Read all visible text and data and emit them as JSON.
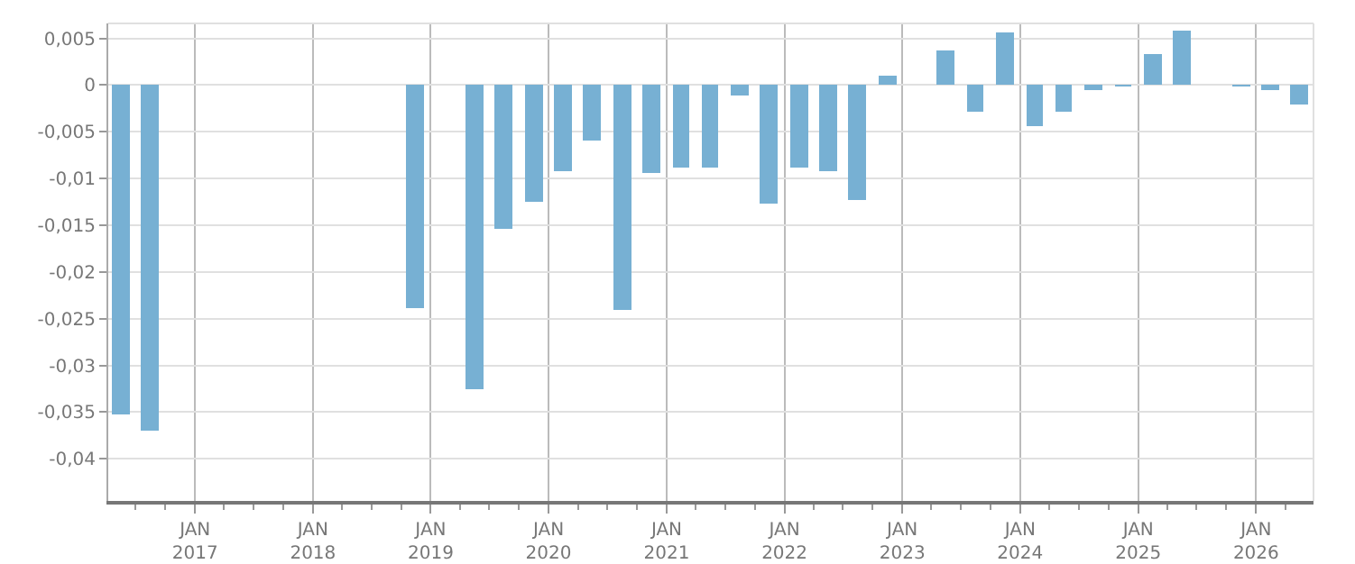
{
  "chart_data": {
    "type": "bar",
    "x": [
      "2016-05-15",
      "2016-08-15",
      "2018-11-15",
      "2019-05-15",
      "2019-08-15",
      "2019-11-15",
      "2020-02-15",
      "2020-05-15",
      "2020-08-15",
      "2020-11-15",
      "2021-02-15",
      "2021-05-15",
      "2021-08-15",
      "2021-11-15",
      "2022-02-15",
      "2022-05-15",
      "2022-08-15",
      "2022-11-15",
      "2023-02-15",
      "2023-05-15",
      "2023-08-15",
      "2023-11-15",
      "2024-02-15",
      "2024-05-15",
      "2024-08-15",
      "2024-11-15",
      "2025-02-15",
      "2025-05-15",
      "2025-08-15",
      "2025-11-15",
      "2026-02-15",
      "2026-05-15"
    ],
    "values": [
      -0.0353,
      -0.037,
      -0.0238,
      -0.0326,
      -0.0154,
      -0.0124,
      -0.0093,
      -0.0059,
      -0.024,
      -0.0095,
      -0.0089,
      -0.0089,
      -0.0011,
      -0.0127,
      -0.0089,
      -0.0093,
      -0.0122,
      0.0011,
      null,
      0.0038,
      -0.0028,
      0.0057,
      -0.0043,
      -0.0028,
      -0.0005,
      -0.0001,
      0.0034,
      0.0059,
      null,
      -0.0001,
      -0.0005,
      -0.002
    ],
    "color": "#77b0d3",
    "xlim": [
      "2016-04-07",
      "2026-06-28"
    ],
    "xticks": [
      {
        "value": "2016-07-01",
        "label": null
      },
      {
        "value": "2016-10-01",
        "label": null
      },
      {
        "value": "2017-01-01",
        "label": "JAN\n2017"
      },
      {
        "value": "2017-04-01",
        "label": null
      },
      {
        "value": "2017-07-01",
        "label": null
      },
      {
        "value": "2017-10-01",
        "label": null
      },
      {
        "value": "2018-01-01",
        "label": "JAN\n2018"
      },
      {
        "value": "2018-04-01",
        "label": null
      },
      {
        "value": "2018-07-01",
        "label": null
      },
      {
        "value": "2018-10-01",
        "label": null
      },
      {
        "value": "2019-01-01",
        "label": "JAN\n2019"
      },
      {
        "value": "2019-04-01",
        "label": null
      },
      {
        "value": "2019-07-01",
        "label": null
      },
      {
        "value": "2019-10-01",
        "label": null
      },
      {
        "value": "2020-01-01",
        "label": "JAN\n2020"
      },
      {
        "value": "2020-04-01",
        "label": null
      },
      {
        "value": "2020-07-01",
        "label": null
      },
      {
        "value": "2020-10-01",
        "label": null
      },
      {
        "value": "2021-01-01",
        "label": "JAN\n2021"
      },
      {
        "value": "2021-04-01",
        "label": null
      },
      {
        "value": "2021-07-01",
        "label": null
      },
      {
        "value": "2021-10-01",
        "label": null
      },
      {
        "value": "2022-01-01",
        "label": "JAN\n2022"
      },
      {
        "value": "2022-04-01",
        "label": null
      },
      {
        "value": "2022-07-01",
        "label": null
      },
      {
        "value": "2022-10-01",
        "label": null
      },
      {
        "value": "2023-01-01",
        "label": "JAN\n2023"
      },
      {
        "value": "2023-04-01",
        "label": null
      },
      {
        "value": "2023-07-01",
        "label": null
      },
      {
        "value": "2023-10-01",
        "label": null
      },
      {
        "value": "2024-01-01",
        "label": "JAN\n2024"
      },
      {
        "value": "2024-04-01",
        "label": null
      },
      {
        "value": "2024-07-01",
        "label": null
      },
      {
        "value": "2024-10-01",
        "label": null
      },
      {
        "value": "2025-01-01",
        "label": "JAN\n2025"
      },
      {
        "value": "2025-04-01",
        "label": null
      },
      {
        "value": "2025-07-01",
        "label": null
      },
      {
        "value": "2025-10-01",
        "label": null
      },
      {
        "value": "2026-01-01",
        "label": "JAN\n2026"
      },
      {
        "value": "2026-04-01",
        "label": null
      }
    ],
    "ylim": [
      -0.0445,
      0.0066
    ],
    "yticks": [
      {
        "value": 0.005,
        "label": "0,005"
      },
      0,
      {
        "value": -0.005,
        "label": "-0,005"
      },
      {
        "value": -0.01,
        "label": "-0,01"
      },
      {
        "value": -0.015,
        "label": "-0,015"
      },
      {
        "value": -0.02,
        "label": "-0,02"
      },
      {
        "value": -0.025,
        "label": "-0,025"
      },
      {
        "value": -0.03,
        "label": "-0,03"
      },
      {
        "value": -0.035,
        "label": "-0,035"
      },
      {
        "value": -0.04,
        "label": "-0,04"
      }
    ],
    "grid": true
  }
}
